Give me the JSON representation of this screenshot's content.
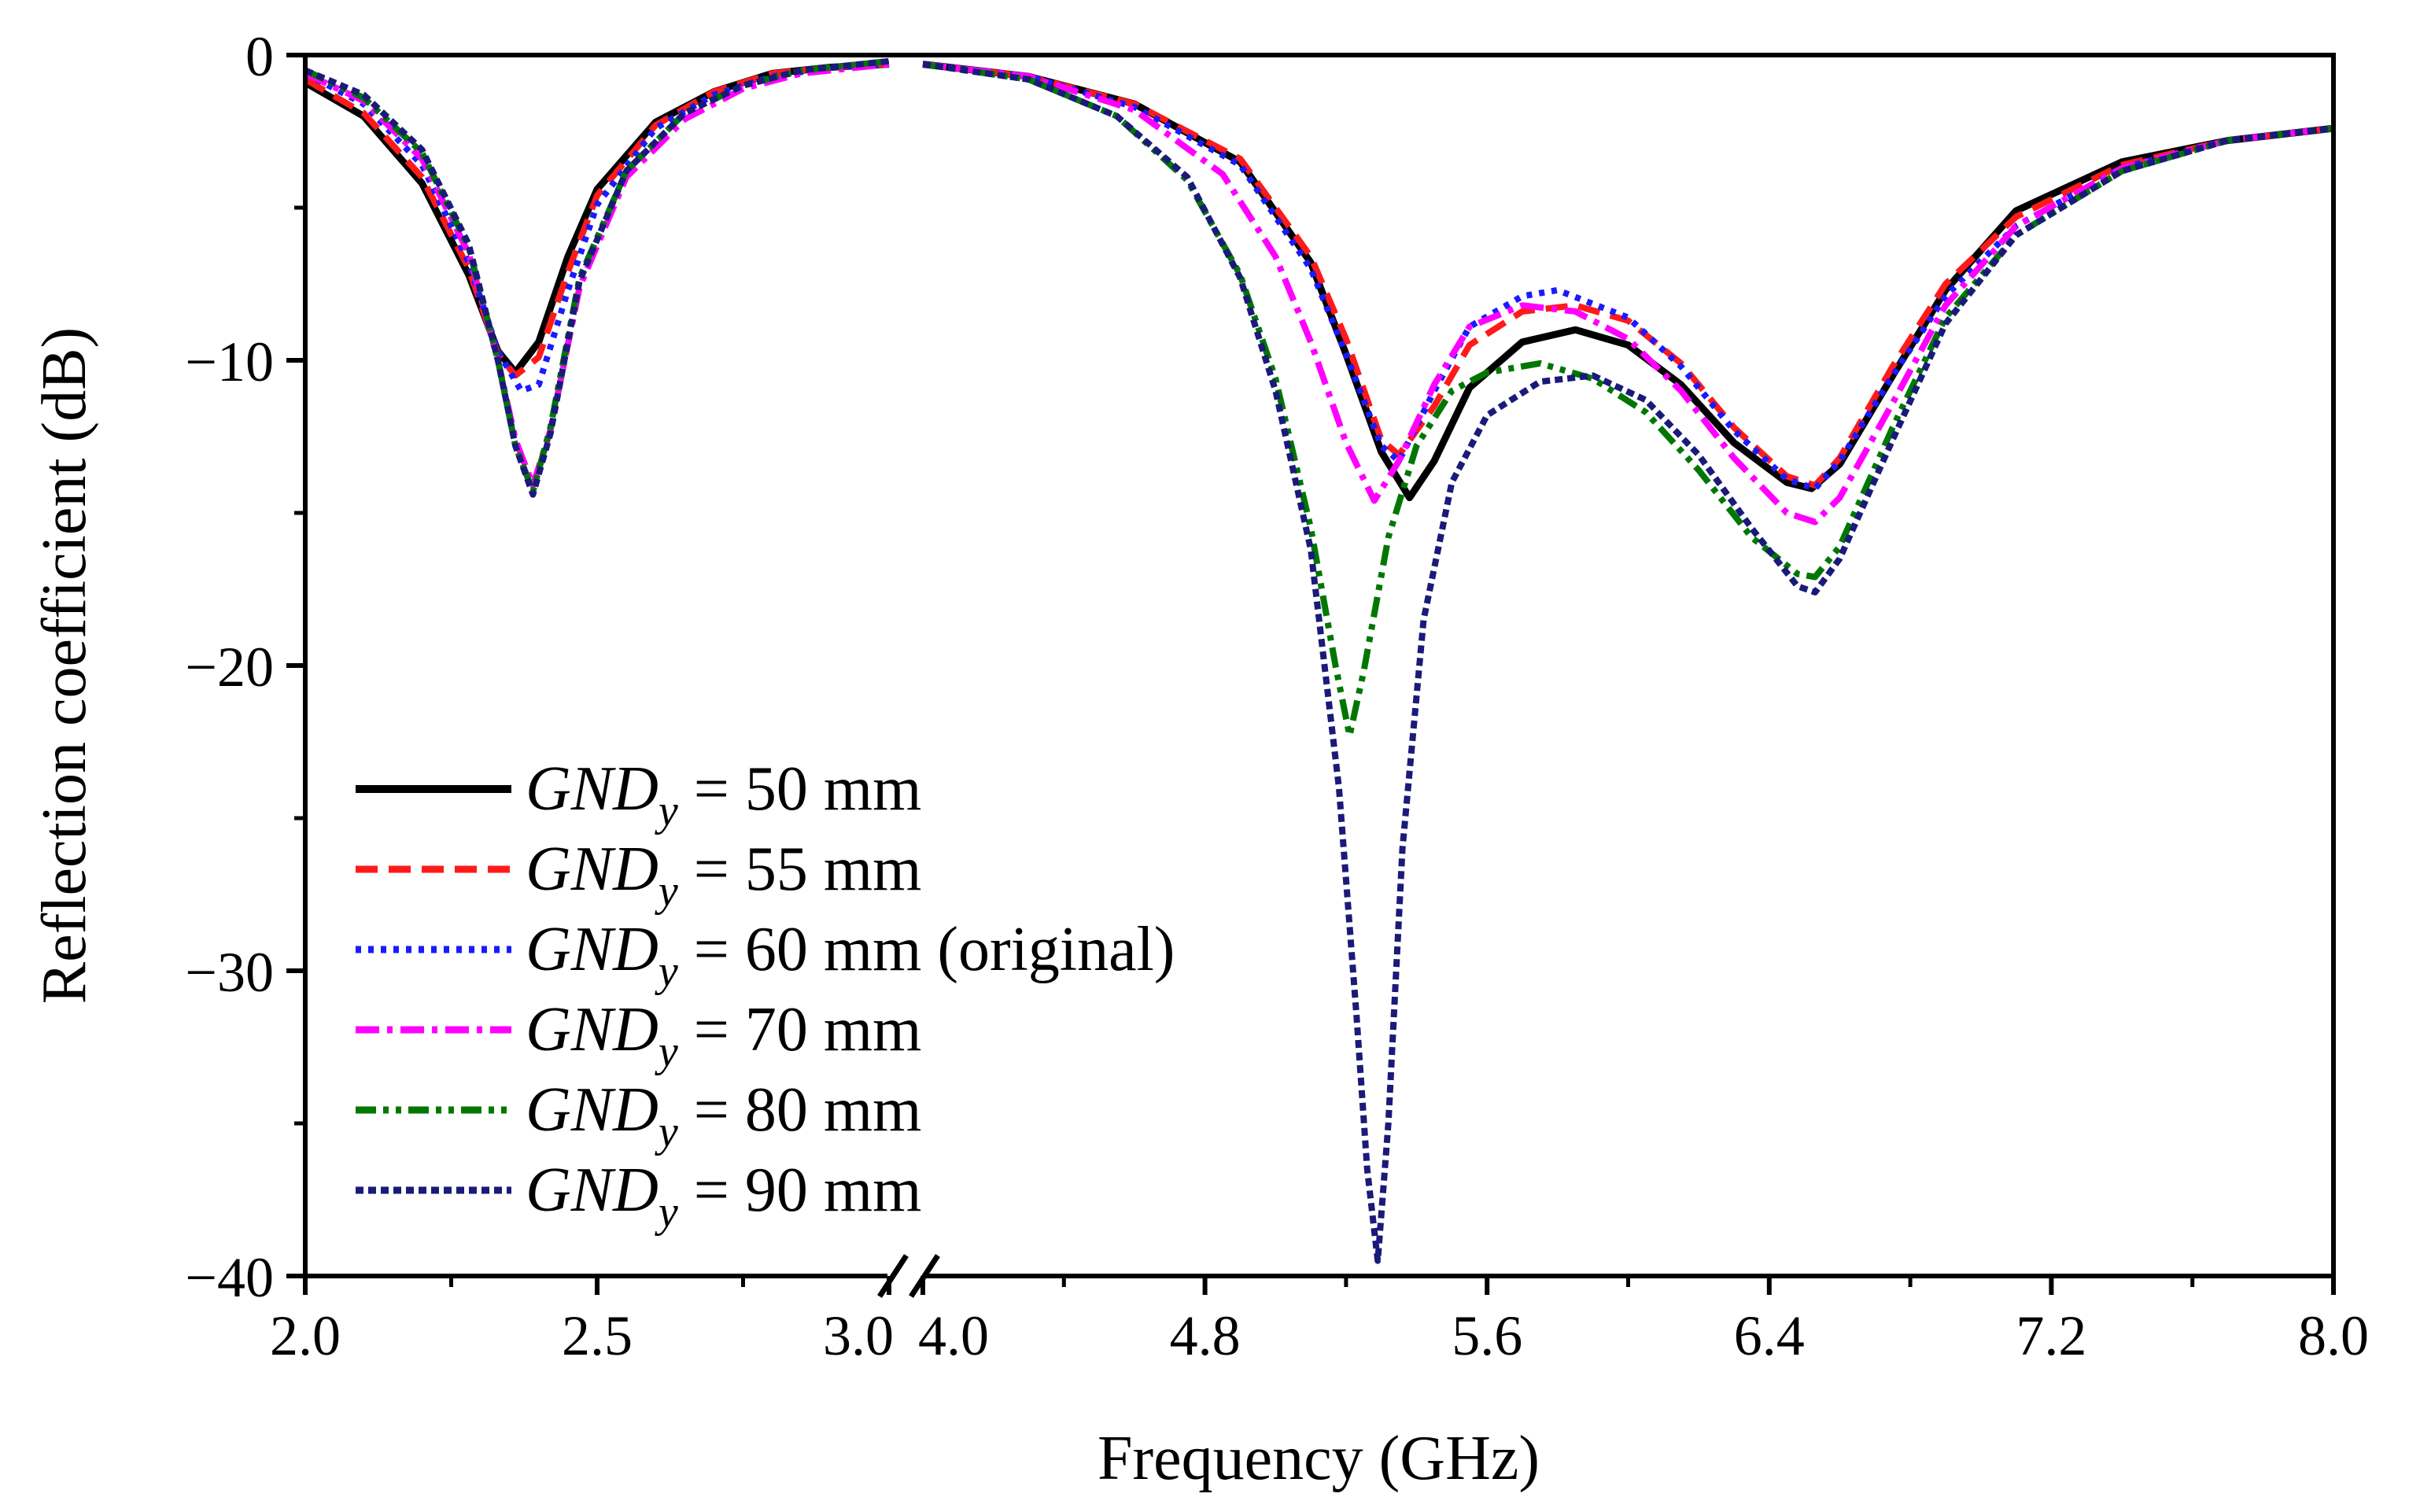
{
  "chart_data": {
    "type": "line",
    "title": "",
    "xlabel": "Frequency (GHz)",
    "ylabel": "Reflection coefficient (dB)",
    "ylim": [
      -40,
      0
    ],
    "y_ticks": [
      0,
      -10,
      -20,
      -30,
      -40
    ],
    "y_tick_labels": [
      "0",
      "−10",
      "−20",
      "−30",
      "−40"
    ],
    "x_axis_segments": [
      {
        "range": [
          2.0,
          3.0
        ],
        "major_ticks": [
          2.0,
          2.5,
          3.0
        ],
        "tick_labels": [
          "2.0",
          "2.5",
          "3.0"
        ]
      },
      {
        "range": [
          4.0,
          8.0
        ],
        "major_ticks": [
          4.0,
          4.8,
          5.6,
          6.4,
          7.2,
          8.0
        ],
        "tick_labels": [
          "4.0",
          "4.8",
          "5.6",
          "6.4",
          "7.2",
          "8.0"
        ]
      }
    ],
    "x_axis_break": "3.0 to 4.0",
    "grid": false,
    "legend_position": "bottom-left",
    "series": [
      {
        "name": "GND",
        "subscript": "y",
        "label_suffix": " = 50 mm",
        "color": "#000000",
        "style": "solid",
        "points": [
          [
            2.0,
            -0.9
          ],
          [
            2.1,
            -2.0
          ],
          [
            2.2,
            -4.2
          ],
          [
            2.28,
            -7.2
          ],
          [
            2.33,
            -9.7
          ],
          [
            2.36,
            -10.4
          ],
          [
            2.4,
            -9.4
          ],
          [
            2.45,
            -6.6
          ],
          [
            2.5,
            -4.4
          ],
          [
            2.6,
            -2.2
          ],
          [
            2.7,
            -1.2
          ],
          [
            2.8,
            -0.6
          ],
          [
            2.9,
            -0.4
          ],
          [
            3.0,
            -0.3
          ],
          [
            4.0,
            -0.3
          ],
          [
            4.3,
            -0.7
          ],
          [
            4.6,
            -1.6
          ],
          [
            4.9,
            -3.5
          ],
          [
            5.1,
            -6.8
          ],
          [
            5.2,
            -9.8
          ],
          [
            5.3,
            -13.0
          ],
          [
            5.38,
            -14.5
          ],
          [
            5.45,
            -13.3
          ],
          [
            5.55,
            -10.9
          ],
          [
            5.7,
            -9.4
          ],
          [
            5.85,
            -9.0
          ],
          [
            6.0,
            -9.5
          ],
          [
            6.15,
            -10.8
          ],
          [
            6.3,
            -12.7
          ],
          [
            6.45,
            -14.0
          ],
          [
            6.52,
            -14.2
          ],
          [
            6.6,
            -13.4
          ],
          [
            6.75,
            -10.5
          ],
          [
            6.9,
            -7.7
          ],
          [
            7.1,
            -5.1
          ],
          [
            7.4,
            -3.5
          ],
          [
            7.7,
            -2.8
          ],
          [
            8.0,
            -2.4
          ]
        ]
      },
      {
        "name": "GND",
        "subscript": "y",
        "label_suffix": " = 55 mm",
        "color": "#ff1a1a",
        "style": "dash",
        "points": [
          [
            2.0,
            -0.8
          ],
          [
            2.1,
            -1.9
          ],
          [
            2.2,
            -4.0
          ],
          [
            2.28,
            -7.0
          ],
          [
            2.33,
            -9.8
          ],
          [
            2.36,
            -10.5
          ],
          [
            2.4,
            -9.9
          ],
          [
            2.45,
            -7.1
          ],
          [
            2.5,
            -4.6
          ],
          [
            2.6,
            -2.3
          ],
          [
            2.7,
            -1.2
          ],
          [
            2.8,
            -0.6
          ],
          [
            2.9,
            -0.4
          ],
          [
            3.0,
            -0.3
          ],
          [
            4.0,
            -0.3
          ],
          [
            4.3,
            -0.7
          ],
          [
            4.6,
            -1.6
          ],
          [
            4.9,
            -3.4
          ],
          [
            5.1,
            -6.6
          ],
          [
            5.2,
            -9.3
          ],
          [
            5.3,
            -12.6
          ],
          [
            5.35,
            -13.1
          ],
          [
            5.45,
            -11.5
          ],
          [
            5.55,
            -9.5
          ],
          [
            5.7,
            -8.4
          ],
          [
            5.85,
            -8.2
          ],
          [
            6.0,
            -8.7
          ],
          [
            6.15,
            -10.1
          ],
          [
            6.3,
            -12.2
          ],
          [
            6.45,
            -13.8
          ],
          [
            6.53,
            -14.1
          ],
          [
            6.6,
            -13.2
          ],
          [
            6.75,
            -10.2
          ],
          [
            6.9,
            -7.5
          ],
          [
            7.1,
            -5.3
          ],
          [
            7.4,
            -3.6
          ],
          [
            7.7,
            -2.8
          ],
          [
            8.0,
            -2.4
          ]
        ]
      },
      {
        "name": "GND",
        "subscript": "y",
        "label_suffix": " = 60 mm (original)",
        "color": "#1a1aff",
        "style": "dot",
        "points": [
          [
            2.0,
            -0.6
          ],
          [
            2.1,
            -1.6
          ],
          [
            2.2,
            -3.6
          ],
          [
            2.28,
            -6.8
          ],
          [
            2.33,
            -9.7
          ],
          [
            2.37,
            -11.0
          ],
          [
            2.4,
            -10.8
          ],
          [
            2.45,
            -7.7
          ],
          [
            2.5,
            -4.9
          ],
          [
            2.6,
            -2.4
          ],
          [
            2.7,
            -1.3
          ],
          [
            2.8,
            -0.7
          ],
          [
            2.9,
            -0.4
          ],
          [
            3.0,
            -0.3
          ],
          [
            4.0,
            -0.3
          ],
          [
            4.3,
            -0.7
          ],
          [
            4.6,
            -1.7
          ],
          [
            4.9,
            -3.6
          ],
          [
            5.1,
            -7.0
          ],
          [
            5.2,
            -9.8
          ],
          [
            5.3,
            -12.8
          ],
          [
            5.35,
            -13.3
          ],
          [
            5.45,
            -11.0
          ],
          [
            5.55,
            -8.9
          ],
          [
            5.7,
            -7.9
          ],
          [
            5.8,
            -7.7
          ],
          [
            6.0,
            -8.6
          ],
          [
            6.15,
            -10.2
          ],
          [
            6.3,
            -12.3
          ],
          [
            6.45,
            -13.9
          ],
          [
            6.53,
            -14.2
          ],
          [
            6.6,
            -13.3
          ],
          [
            6.75,
            -10.5
          ],
          [
            6.9,
            -7.9
          ],
          [
            7.1,
            -5.6
          ],
          [
            7.4,
            -3.7
          ],
          [
            7.7,
            -2.8
          ],
          [
            8.0,
            -2.4
          ]
        ]
      },
      {
        "name": "GND",
        "subscript": "y",
        "label_suffix": " = 70 mm",
        "color": "#ff00ff",
        "style": "dashdot",
        "points": [
          [
            2.0,
            -0.6
          ],
          [
            2.1,
            -1.5
          ],
          [
            2.2,
            -3.4
          ],
          [
            2.28,
            -6.5
          ],
          [
            2.33,
            -10.0
          ],
          [
            2.36,
            -12.6
          ],
          [
            2.39,
            -14.1
          ],
          [
            2.42,
            -12.3
          ],
          [
            2.47,
            -7.6
          ],
          [
            2.55,
            -4.0
          ],
          [
            2.65,
            -2.1
          ],
          [
            2.75,
            -1.1
          ],
          [
            2.85,
            -0.6
          ],
          [
            3.0,
            -0.3
          ],
          [
            4.0,
            -0.3
          ],
          [
            4.3,
            -0.7
          ],
          [
            4.6,
            -1.8
          ],
          [
            4.85,
            -3.9
          ],
          [
            5.0,
            -6.6
          ],
          [
            5.1,
            -9.4
          ],
          [
            5.2,
            -12.7
          ],
          [
            5.28,
            -14.6
          ],
          [
            5.35,
            -13.3
          ],
          [
            5.45,
            -10.8
          ],
          [
            5.55,
            -8.9
          ],
          [
            5.7,
            -8.2
          ],
          [
            5.85,
            -8.4
          ],
          [
            6.0,
            -9.3
          ],
          [
            6.15,
            -11.0
          ],
          [
            6.3,
            -13.2
          ],
          [
            6.45,
            -15.0
          ],
          [
            6.53,
            -15.3
          ],
          [
            6.6,
            -14.5
          ],
          [
            6.75,
            -11.4
          ],
          [
            6.9,
            -8.2
          ],
          [
            7.1,
            -5.6
          ],
          [
            7.4,
            -3.7
          ],
          [
            7.7,
            -2.8
          ],
          [
            8.0,
            -2.4
          ]
        ]
      },
      {
        "name": "GND",
        "subscript": "y",
        "label_suffix": " = 80 mm",
        "color": "#007700",
        "style": "dashdotdot",
        "points": [
          [
            2.0,
            -0.5
          ],
          [
            2.1,
            -1.4
          ],
          [
            2.2,
            -3.2
          ],
          [
            2.28,
            -6.3
          ],
          [
            2.33,
            -10.0
          ],
          [
            2.36,
            -12.8
          ],
          [
            2.39,
            -14.3
          ],
          [
            2.42,
            -12.2
          ],
          [
            2.47,
            -7.3
          ],
          [
            2.55,
            -3.8
          ],
          [
            2.65,
            -1.9
          ],
          [
            2.75,
            -1.0
          ],
          [
            2.85,
            -0.5
          ],
          [
            3.0,
            -0.2
          ],
          [
            4.0,
            -0.3
          ],
          [
            4.3,
            -0.8
          ],
          [
            4.55,
            -2.0
          ],
          [
            4.75,
            -4.1
          ],
          [
            4.9,
            -7.2
          ],
          [
            5.0,
            -10.6
          ],
          [
            5.1,
            -15.5
          ],
          [
            5.17,
            -20.0
          ],
          [
            5.21,
            -22.3
          ],
          [
            5.25,
            -20.2
          ],
          [
            5.32,
            -15.8
          ],
          [
            5.4,
            -12.8
          ],
          [
            5.5,
            -11.0
          ],
          [
            5.6,
            -10.4
          ],
          [
            5.75,
            -10.1
          ],
          [
            5.9,
            -10.6
          ],
          [
            6.05,
            -11.7
          ],
          [
            6.2,
            -13.6
          ],
          [
            6.35,
            -15.8
          ],
          [
            6.48,
            -17.0
          ],
          [
            6.53,
            -17.1
          ],
          [
            6.6,
            -16.1
          ],
          [
            6.75,
            -12.2
          ],
          [
            6.9,
            -8.6
          ],
          [
            7.1,
            -5.9
          ],
          [
            7.4,
            -3.8
          ],
          [
            7.7,
            -2.8
          ],
          [
            8.0,
            -2.4
          ]
        ]
      },
      {
        "name": "GND",
        "subscript": "y",
        "label_suffix": " = 90 mm",
        "color": "#1a1a7a",
        "style": "shortdash",
        "points": [
          [
            2.0,
            -0.5
          ],
          [
            2.1,
            -1.3
          ],
          [
            2.2,
            -3.1
          ],
          [
            2.28,
            -6.2
          ],
          [
            2.33,
            -10.0
          ],
          [
            2.36,
            -12.8
          ],
          [
            2.39,
            -14.4
          ],
          [
            2.42,
            -12.4
          ],
          [
            2.47,
            -7.4
          ],
          [
            2.55,
            -3.8
          ],
          [
            2.65,
            -1.9
          ],
          [
            2.75,
            -1.0
          ],
          [
            2.85,
            -0.5
          ],
          [
            3.0,
            -0.2
          ],
          [
            4.0,
            -0.3
          ],
          [
            4.3,
            -0.8
          ],
          [
            4.55,
            -2.0
          ],
          [
            4.75,
            -4.0
          ],
          [
            4.9,
            -7.3
          ],
          [
            5.0,
            -11.0
          ],
          [
            5.1,
            -16.2
          ],
          [
            5.18,
            -24.0
          ],
          [
            5.23,
            -31.5
          ],
          [
            5.26,
            -36.5
          ],
          [
            5.29,
            -39.5
          ],
          [
            5.32,
            -35.0
          ],
          [
            5.36,
            -26.0
          ],
          [
            5.42,
            -18.5
          ],
          [
            5.5,
            -14.0
          ],
          [
            5.6,
            -11.8
          ],
          [
            5.75,
            -10.7
          ],
          [
            5.9,
            -10.5
          ],
          [
            6.05,
            -11.3
          ],
          [
            6.2,
            -13.1
          ],
          [
            6.35,
            -15.5
          ],
          [
            6.48,
            -17.4
          ],
          [
            6.53,
            -17.6
          ],
          [
            6.6,
            -16.5
          ],
          [
            6.75,
            -12.6
          ],
          [
            6.9,
            -8.8
          ],
          [
            7.1,
            -5.9
          ],
          [
            7.4,
            -3.8
          ],
          [
            7.7,
            -2.8
          ],
          [
            8.0,
            -2.4
          ]
        ]
      }
    ]
  }
}
